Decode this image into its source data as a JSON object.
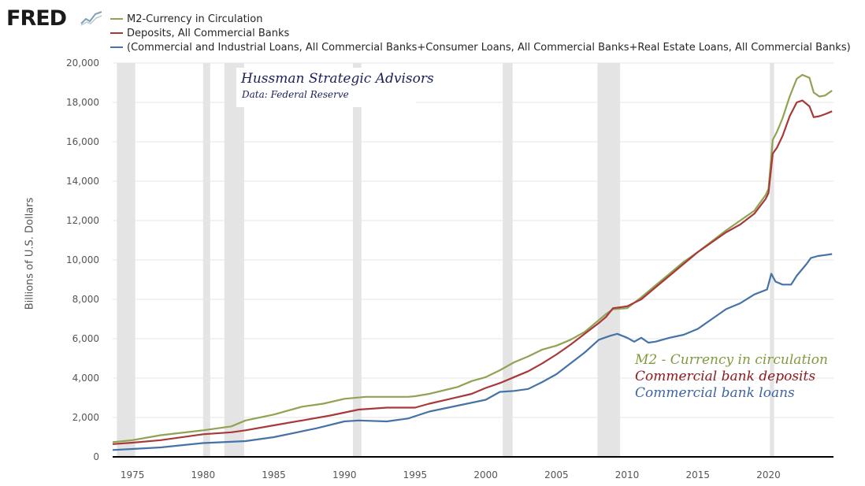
{
  "header": {
    "logo_text": "FRED",
    "logo_icon": "chart-line-icon"
  },
  "legend": {
    "items": [
      {
        "label": "M2-Currency in Circulation",
        "color": "#8fa352"
      },
      {
        "label": "Deposits, All Commercial Banks",
        "color": "#a8393b"
      },
      {
        "label": "(Commercial and Industrial Loans, All Commercial Banks+Consumer Loans, All Commercial Banks+Real Estate Loans, All Commercial Banks)",
        "color": "#4572a7"
      }
    ]
  },
  "annotations": {
    "title": "Hussman Strategic Advisors",
    "subtitle": "Data: Federal Reserve",
    "series_labels": [
      {
        "text": "M2 - Currency in circulation",
        "color": "#7f9a3e"
      },
      {
        "text": "Commercial bank deposits",
        "color": "#8b1a1f"
      },
      {
        "text": "Commercial bank loans",
        "color": "#3d64a6"
      }
    ]
  },
  "chart_data": {
    "type": "line",
    "title": "",
    "xlabel": "",
    "ylabel": "Billions of U.S. Dollars",
    "xlim": [
      1973.6,
      2024.6
    ],
    "ylim": [
      0,
      20000
    ],
    "x_ticks": [
      1975,
      1980,
      1985,
      1990,
      1995,
      2000,
      2005,
      2010,
      2015,
      2020
    ],
    "y_ticks": [
      0,
      2000,
      4000,
      6000,
      8000,
      10000,
      12000,
      14000,
      16000,
      18000,
      20000
    ],
    "y_tick_labels": [
      "0",
      "2,000",
      "4,000",
      "6,000",
      "8,000",
      "10,000",
      "12,000",
      "14,000",
      "16,000",
      "18,000",
      "20,000"
    ],
    "grid": true,
    "recessions": [
      {
        "start": 1973.9,
        "end": 1975.2
      },
      {
        "start": 1980.0,
        "end": 1980.5
      },
      {
        "start": 1981.5,
        "end": 1982.9
      },
      {
        "start": 1990.6,
        "end": 1991.2
      },
      {
        "start": 2001.2,
        "end": 2001.9
      },
      {
        "start": 2007.9,
        "end": 2009.5
      },
      {
        "start": 2020.1,
        "end": 2020.4
      }
    ],
    "series": [
      {
        "name": "M2-Currency in Circulation",
        "color": "#8fa352",
        "x": [
          1973.6,
          1975,
          1977,
          1980,
          1982,
          1983,
          1985,
          1987,
          1988.5,
          1990,
          1991.5,
          1993,
          1994.5,
          1995,
          1996,
          1998,
          1999,
          2000,
          2001,
          2002,
          2003,
          2004,
          2005,
          2006,
          2007,
          2008,
          2008.5,
          2009,
          2010,
          2011,
          2012,
          2013,
          2014,
          2015,
          2016,
          2017,
          2018,
          2019,
          2019.8,
          2020.0,
          2020.3,
          2020.6,
          2021,
          2021.5,
          2022,
          2022.4,
          2022.9,
          2023.2,
          2023.6,
          2024,
          2024.5
        ],
        "y": [
          750,
          850,
          1100,
          1350,
          1550,
          1850,
          2150,
          2550,
          2700,
          2950,
          3050,
          3050,
          3050,
          3080,
          3200,
          3550,
          3850,
          4050,
          4400,
          4800,
          5100,
          5450,
          5650,
          5950,
          6350,
          6950,
          7250,
          7500,
          7550,
          8100,
          8700,
          9300,
          9900,
          10400,
          10950,
          11500,
          12000,
          12500,
          13300,
          13600,
          16100,
          16500,
          17200,
          18300,
          19200,
          19400,
          19250,
          18500,
          18300,
          18350,
          18600
        ]
      },
      {
        "name": "Deposits, All Commercial Banks",
        "color": "#a8393b",
        "x": [
          1973.6,
          1975,
          1977,
          1980,
          1982,
          1983,
          1985,
          1987,
          1989,
          1991,
          1993,
          1995,
          1996,
          1997.5,
          1999,
          2000,
          2001,
          2002,
          2003,
          2004,
          2005,
          2006,
          2007,
          2008,
          2008.5,
          2009,
          2010,
          2011,
          2012,
          2013,
          2014,
          2015,
          2016,
          2017,
          2018,
          2019,
          2019.8,
          2020.0,
          2020.3,
          2020.6,
          2021,
          2021.5,
          2022,
          2022.4,
          2022.9,
          2023.2,
          2023.6,
          2024,
          2024.5
        ],
        "y": [
          650,
          720,
          850,
          1150,
          1250,
          1350,
          1600,
          1850,
          2100,
          2400,
          2500,
          2500,
          2700,
          2950,
          3200,
          3500,
          3750,
          4050,
          4350,
          4750,
          5200,
          5700,
          6250,
          6800,
          7100,
          7550,
          7650,
          8000,
          8600,
          9200,
          9800,
          10400,
          10900,
          11400,
          11800,
          12350,
          13100,
          13400,
          15400,
          15700,
          16300,
          17300,
          18000,
          18100,
          17800,
          17250,
          17300,
          17400,
          17550
        ]
      },
      {
        "name": "(Commercial and Industrial Loans, All Commercial Banks+Consumer Loans, All Commercial Banks+Real Estate Loans, All Commercial Banks)",
        "color": "#4572a7",
        "x": [
          1973.6,
          1975,
          1977,
          1980,
          1983,
          1985,
          1988,
          1990,
          1991,
          1993,
          1994.5,
          1996,
          1998,
          2000,
          2001,
          2002,
          2003,
          2004,
          2005,
          2006,
          2007,
          2008,
          2008.8,
          2009.3,
          2010,
          2010.5,
          2011,
          2011.5,
          2012,
          2013,
          2014,
          2015,
          2016,
          2017,
          2018,
          2019,
          2019.9,
          2020.2,
          2020.5,
          2021,
          2021.6,
          2022,
          2022.7,
          2023,
          2023.5,
          2024,
          2024.5
        ],
        "y": [
          350,
          400,
          480,
          700,
          800,
          1000,
          1450,
          1800,
          1850,
          1800,
          1950,
          2300,
          2600,
          2900,
          3300,
          3350,
          3450,
          3800,
          4200,
          4750,
          5300,
          5950,
          6150,
          6250,
          6050,
          5850,
          6050,
          5800,
          5850,
          6050,
          6200,
          6500,
          7000,
          7500,
          7800,
          8250,
          8500,
          9300,
          8900,
          8750,
          8750,
          9200,
          9800,
          10100,
          10200,
          10250,
          10300
        ]
      }
    ]
  }
}
